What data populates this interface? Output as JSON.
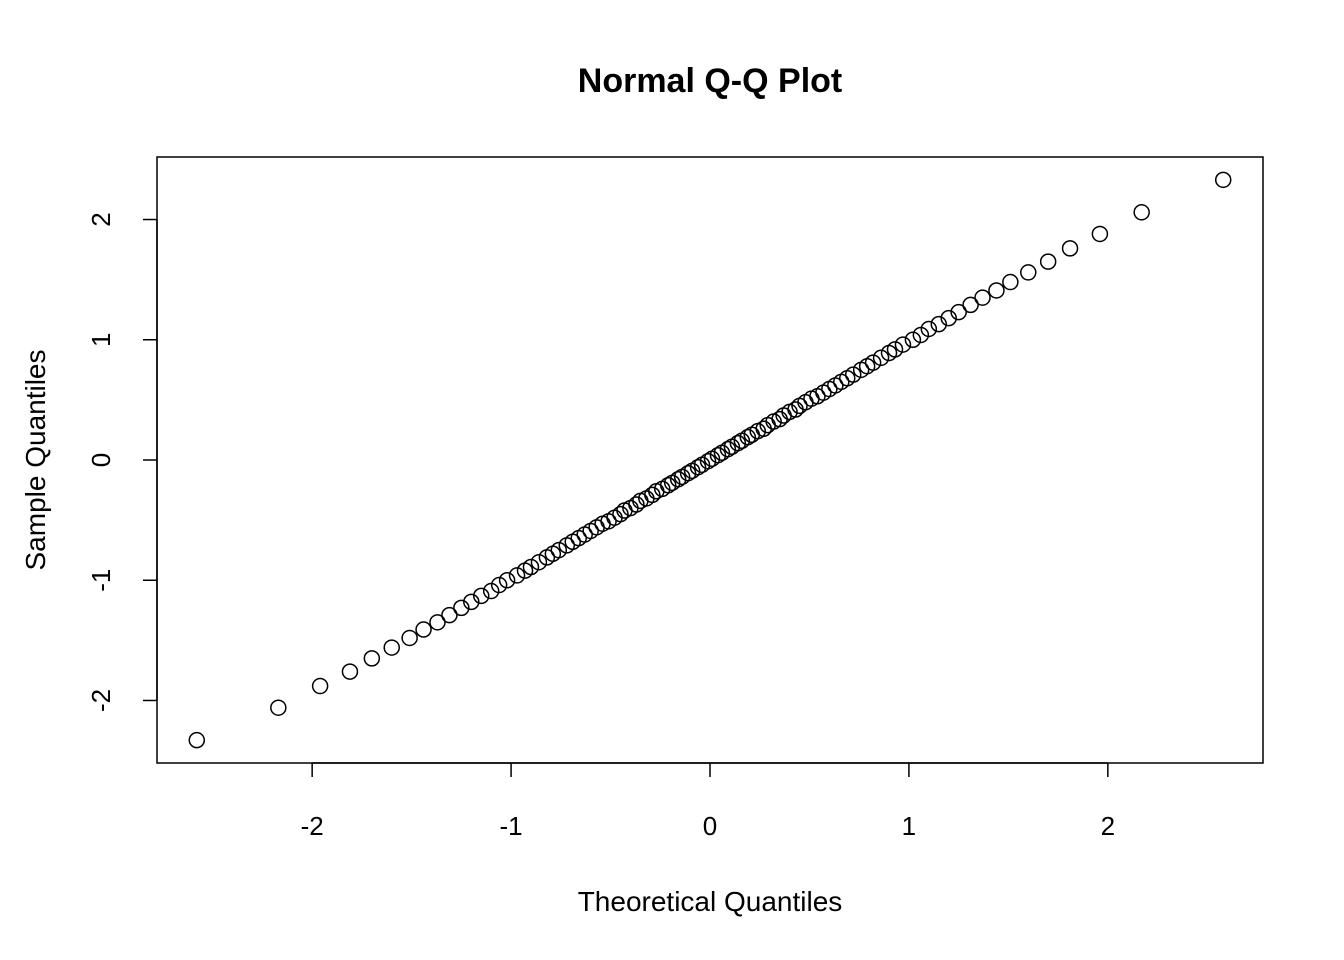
{
  "chart_data": {
    "type": "scatter",
    "title": "Normal Q-Q Plot",
    "xlabel": "Theoretical Quantiles",
    "ylabel": "Sample Quantiles",
    "xlim": [
      -2.78,
      2.78
    ],
    "ylim": [
      -2.52,
      2.52
    ],
    "xticks": [
      -2,
      -1,
      0,
      1,
      2
    ],
    "yticks": [
      -2,
      -1,
      0,
      1,
      2
    ],
    "xtick_labels": [
      "-2",
      "-1",
      "0",
      "1",
      "2"
    ],
    "ytick_labels": [
      "-2",
      "-1",
      "0",
      "1",
      "2"
    ],
    "grid": false,
    "marker": "open-circle",
    "x": [
      -2.58,
      -2.17,
      -1.96,
      -1.81,
      -1.7,
      -1.6,
      -1.51,
      -1.44,
      -1.37,
      -1.31,
      -1.25,
      -1.2,
      -1.15,
      -1.1,
      -1.06,
      -1.02,
      -0.97,
      -0.93,
      -0.9,
      -0.86,
      -0.82,
      -0.79,
      -0.76,
      -0.72,
      -0.69,
      -0.66,
      -0.63,
      -0.6,
      -0.57,
      -0.54,
      -0.51,
      -0.48,
      -0.45,
      -0.43,
      -0.4,
      -0.37,
      -0.35,
      -0.32,
      -0.29,
      -0.27,
      -0.24,
      -0.21,
      -0.19,
      -0.16,
      -0.14,
      -0.11,
      -0.09,
      -0.06,
      -0.04,
      -0.01,
      0.01,
      0.04,
      0.06,
      0.09,
      0.11,
      0.14,
      0.16,
      0.19,
      0.21,
      0.24,
      0.27,
      0.29,
      0.32,
      0.35,
      0.37,
      0.4,
      0.43,
      0.45,
      0.48,
      0.51,
      0.54,
      0.57,
      0.6,
      0.63,
      0.66,
      0.69,
      0.72,
      0.76,
      0.79,
      0.82,
      0.86,
      0.9,
      0.93,
      0.97,
      1.02,
      1.06,
      1.1,
      1.15,
      1.2,
      1.25,
      1.31,
      1.37,
      1.44,
      1.51,
      1.6,
      1.7,
      1.81,
      1.96,
      2.17,
      2.58
    ],
    "y": [
      -2.33,
      -2.06,
      -1.88,
      -1.76,
      -1.65,
      -1.56,
      -1.48,
      -1.41,
      -1.35,
      -1.29,
      -1.23,
      -1.18,
      -1.13,
      -1.09,
      -1.04,
      -1.0,
      -0.96,
      -0.92,
      -0.89,
      -0.85,
      -0.81,
      -0.78,
      -0.75,
      -0.71,
      -0.68,
      -0.65,
      -0.62,
      -0.59,
      -0.56,
      -0.53,
      -0.51,
      -0.48,
      -0.45,
      -0.42,
      -0.4,
      -0.37,
      -0.34,
      -0.32,
      -0.29,
      -0.26,
      -0.24,
      -0.21,
      -0.19,
      -0.16,
      -0.14,
      -0.11,
      -0.09,
      -0.06,
      -0.04,
      -0.01,
      0.01,
      0.04,
      0.06,
      0.09,
      0.11,
      0.14,
      0.16,
      0.19,
      0.21,
      0.24,
      0.26,
      0.29,
      0.32,
      0.34,
      0.37,
      0.4,
      0.42,
      0.45,
      0.48,
      0.51,
      0.53,
      0.56,
      0.59,
      0.62,
      0.65,
      0.68,
      0.71,
      0.75,
      0.78,
      0.81,
      0.85,
      0.89,
      0.92,
      0.96,
      1.0,
      1.04,
      1.09,
      1.13,
      1.18,
      1.23,
      1.29,
      1.35,
      1.41,
      1.48,
      1.56,
      1.65,
      1.76,
      1.88,
      2.06,
      2.33
    ]
  }
}
